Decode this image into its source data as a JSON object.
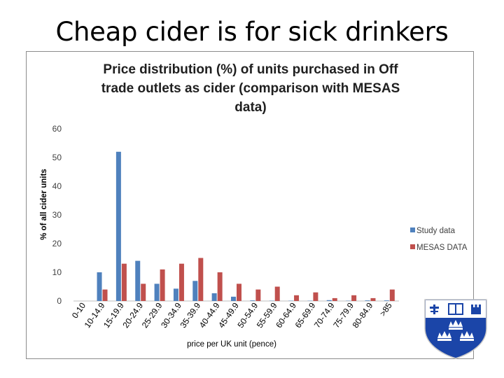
{
  "slide": {
    "title": "Cheap cider is for sick drinkers"
  },
  "colors": {
    "study": "#4f81bd",
    "mesas": "#c0504d",
    "crest_blue": "#1b45a8",
    "crest_white": "#ffffff"
  },
  "logo": {
    "name": "university-crest"
  },
  "chart_data": {
    "type": "bar",
    "title_lines": [
      "Price distribution (%) of units purchased in Off",
      "trade outlets as cider (comparison with MESAS",
      "data)"
    ],
    "xlabel": "price per UK unit (pence)",
    "ylabel": "% of all cider units",
    "ylim": [
      0,
      60
    ],
    "yticks": [
      0,
      10,
      20,
      30,
      40,
      50,
      60
    ],
    "grid": false,
    "legend_position": "right",
    "categories": [
      "0-10",
      "10-14.9",
      "15-19.9",
      "20-24.9",
      "25-29.9",
      "30-34.9",
      "35-39.9",
      "40-44.9",
      "45-49.9",
      "50-54.9",
      "55-59.9",
      "60-64.9",
      "65-69.9",
      "70-74.9",
      "75-79.9",
      "80-84.9",
      ">85"
    ],
    "series": [
      {
        "name": "Study data",
        "color": "#4f81bd",
        "values": [
          0,
          10,
          52,
          14,
          6,
          4.3,
          7,
          2.7,
          1.5,
          0.2,
          0.1,
          0.1,
          0.1,
          0.3,
          0.1,
          0.2,
          0.2
        ]
      },
      {
        "name": "MESAS DATA",
        "color": "#c0504d",
        "values": [
          0,
          4,
          13,
          6,
          11,
          13,
          15,
          10,
          6,
          4,
          5,
          2,
          3,
          1,
          2,
          1,
          4
        ]
      }
    ]
  }
}
